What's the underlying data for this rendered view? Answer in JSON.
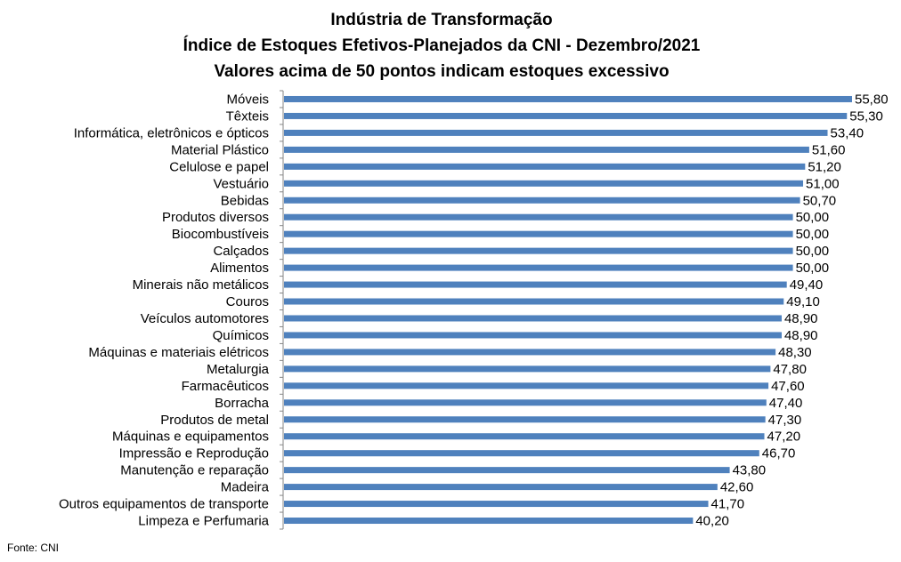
{
  "chart_data": {
    "type": "bar",
    "orientation": "horizontal",
    "title": [
      "Indústria de Transformação",
      "Índice de Estoques Efetivos-Planejados da CNI - Dezembro/2021",
      "Valores acima de 50 pontos indicam estoques excessivo"
    ],
    "categories": [
      "Móveis",
      "Têxteis",
      "Informática, eletrônicos e ópticos",
      "Material Plástico",
      "Celulose e papel",
      "Vestuário",
      "Bebidas",
      "Produtos diversos",
      "Biocombustíveis",
      "Calçados",
      "Alimentos",
      "Minerais não metálicos",
      "Couros",
      "Veículos automotores",
      "Químicos",
      "Máquinas e materiais elétricos",
      "Metalurgia",
      "Farmacêuticos",
      "Borracha",
      "Produtos de metal",
      "Máquinas e equipamentos",
      "Impressão e Reprodução",
      "Manutenção e reparação",
      "Madeira",
      "Outros equipamentos de transporte",
      "Limpeza e Perfumaria"
    ],
    "values": [
      55.8,
      55.3,
      53.4,
      51.6,
      51.2,
      51.0,
      50.7,
      50.0,
      50.0,
      50.0,
      50.0,
      49.4,
      49.1,
      48.9,
      48.9,
      48.3,
      47.8,
      47.6,
      47.4,
      47.3,
      47.2,
      46.7,
      43.8,
      42.6,
      41.7,
      40.2
    ],
    "value_labels": [
      "55,80",
      "55,30",
      "53,40",
      "51,60",
      "51,20",
      "51,00",
      "50,70",
      "50,00",
      "50,00",
      "50,00",
      "50,00",
      "49,40",
      "49,10",
      "48,90",
      "48,90",
      "48,30",
      "47,80",
      "47,60",
      "47,40",
      "47,30",
      "47,20",
      "46,70",
      "43,80",
      "42,60",
      "41,70",
      "40,20"
    ],
    "xlim": [
      0,
      55.8
    ],
    "bar_color": "#4f81bd",
    "grid": false,
    "legend": "none"
  },
  "source": "Fonte: CNI"
}
